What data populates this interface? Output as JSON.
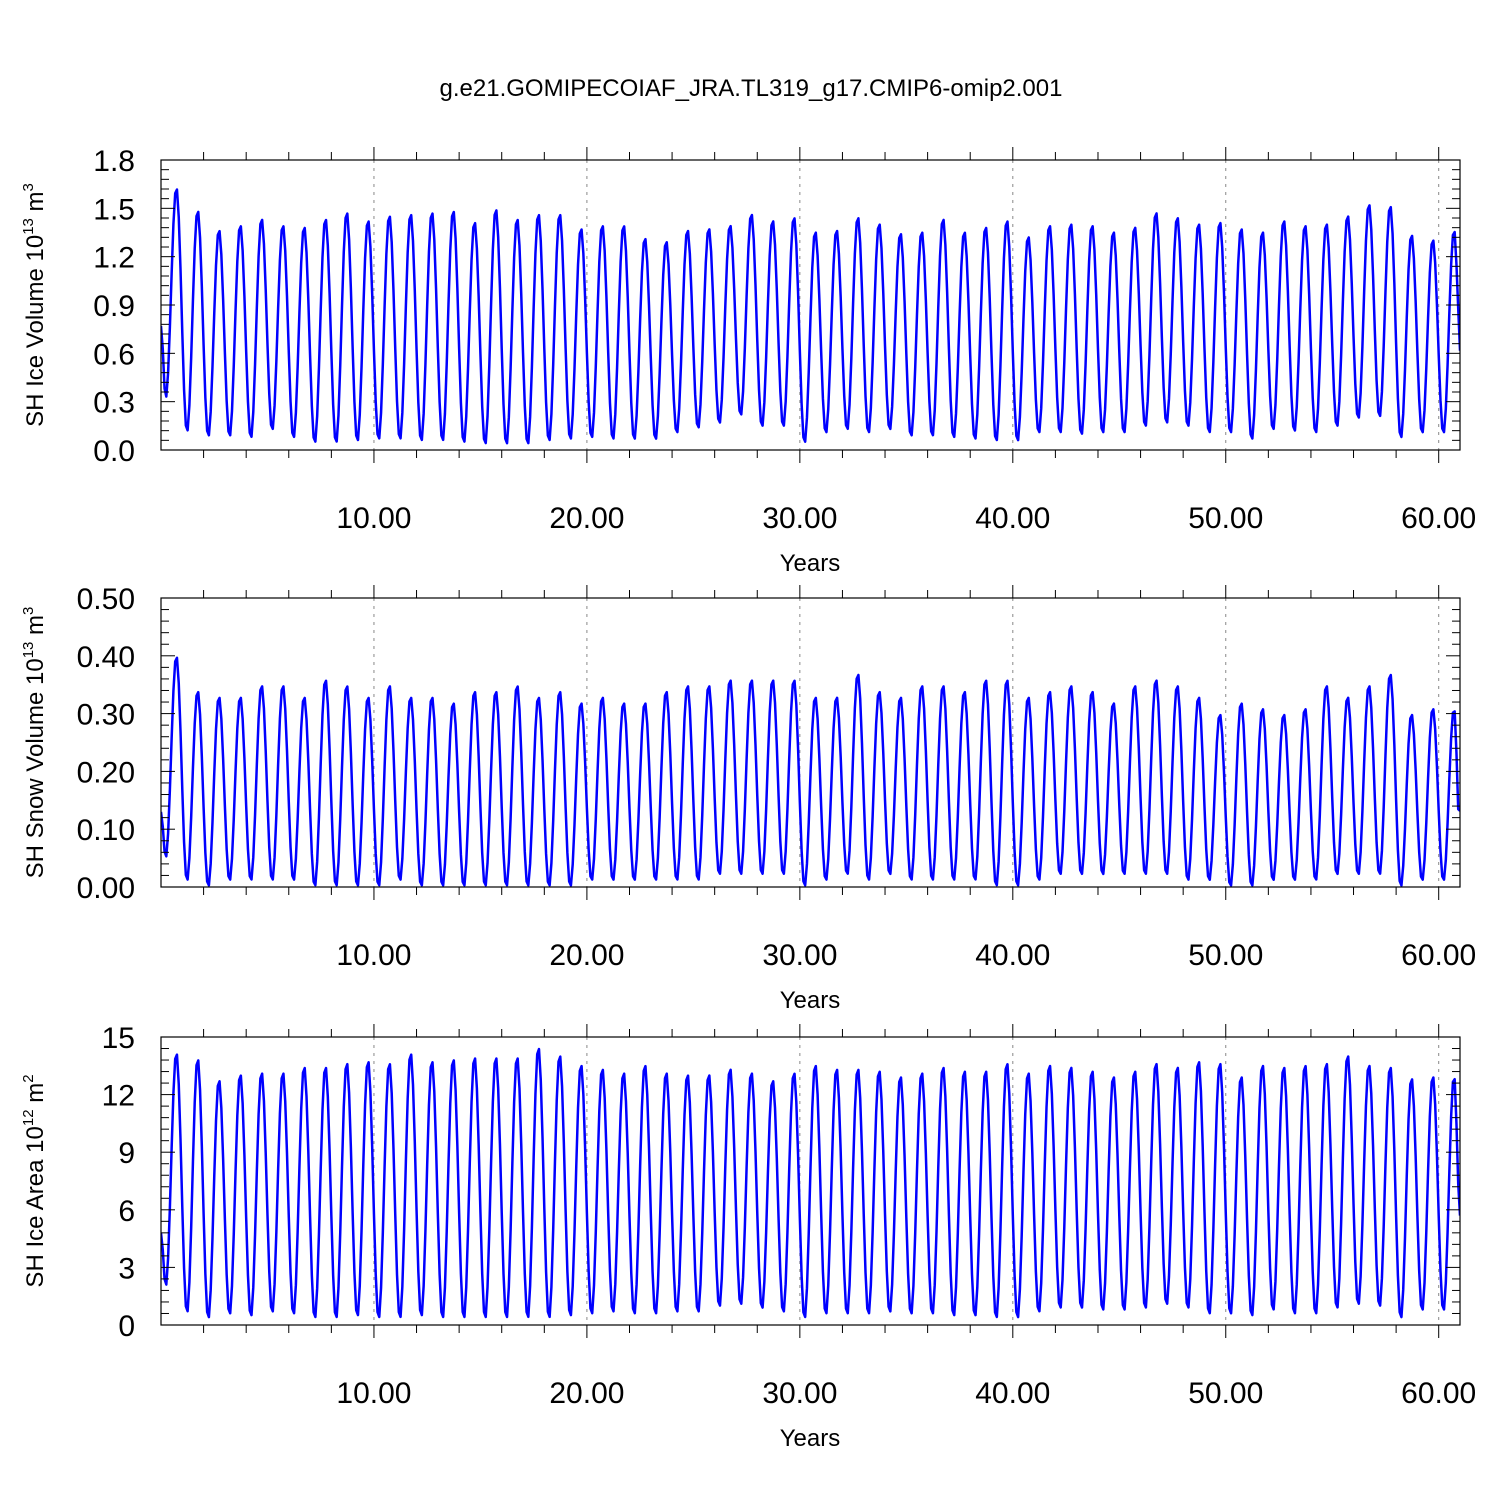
{
  "figure_title": "g.e21.GOMIPECOIAF_JRA.TL319_g17.CMIP6-omip2.001",
  "chart_data": [
    {
      "type": "line",
      "id": "ice-volume",
      "ylabel_main": "SH Ice Volume 10",
      "ylabel_exp": "13",
      "ylabel_unit": " m",
      "ylabel_unit_exp": "3",
      "xlabel": "Years",
      "xlim": [
        0.0,
        61.0
      ],
      "ylim": [
        0.0,
        1.8
      ],
      "y_ticks": [
        0.0,
        0.3,
        0.6,
        0.9,
        1.2,
        1.5,
        1.8
      ],
      "y_tick_labels": [
        "0.0",
        "0.3",
        "0.6",
        "0.9",
        "1.2",
        "1.5",
        "1.8"
      ],
      "x_ticks": [
        10,
        20,
        30,
        40,
        50,
        60
      ],
      "x_tick_labels": [
        "10.00",
        "20.00",
        "30.00",
        "40.00",
        "50.00",
        "60.00"
      ],
      "series": [
        {
          "name": "SH Ice Volume",
          "color": "#0000ff",
          "start_value": 0.77,
          "end_value": 0.75,
          "annual_max": [
            1.63,
            1.49,
            1.37,
            1.4,
            1.44,
            1.4,
            1.39,
            1.44,
            1.48,
            1.43,
            1.46,
            1.47,
            1.48,
            1.49,
            1.42,
            1.5,
            1.44,
            1.47,
            1.47,
            1.38,
            1.4,
            1.4,
            1.32,
            1.3,
            1.37,
            1.38,
            1.4,
            1.47,
            1.43,
            1.45,
            1.36,
            1.37,
            1.45,
            1.41,
            1.35,
            1.36,
            1.44,
            1.36,
            1.39,
            1.43,
            1.33,
            1.4,
            1.41,
            1.4,
            1.36,
            1.39,
            1.48,
            1.45,
            1.41,
            1.42,
            1.38,
            1.36,
            1.43,
            1.4,
            1.41,
            1.46,
            1.53,
            1.52,
            1.34,
            1.31,
            1.37
          ],
          "annual_min": [
            0.32,
            0.11,
            0.08,
            0.08,
            0.07,
            0.12,
            0.07,
            0.04,
            0.04,
            0.05,
            0.06,
            0.06,
            0.05,
            0.05,
            0.04,
            0.03,
            0.03,
            0.03,
            0.05,
            0.06,
            0.07,
            0.06,
            0.06,
            0.06,
            0.1,
            0.13,
            0.16,
            0.21,
            0.14,
            0.14,
            0.04,
            0.1,
            0.12,
            0.1,
            0.12,
            0.08,
            0.08,
            0.07,
            0.06,
            0.05,
            0.05,
            0.1,
            0.1,
            0.09,
            0.1,
            0.1,
            0.14,
            0.16,
            0.14,
            0.1,
            0.1,
            0.06,
            0.12,
            0.11,
            0.1,
            0.14,
            0.19,
            0.2,
            0.07,
            0.1
          ]
        }
      ]
    },
    {
      "type": "line",
      "id": "snow-volume",
      "ylabel_main": "SH Snow Volume 10",
      "ylabel_exp": "13",
      "ylabel_unit": " m",
      "ylabel_unit_exp": "3",
      "xlabel": "Years",
      "xlim": [
        0.0,
        61.0
      ],
      "ylim": [
        0.0,
        0.5
      ],
      "y_ticks": [
        0.0,
        0.1,
        0.2,
        0.3,
        0.4,
        0.5
      ],
      "y_tick_labels": [
        "0.00",
        "0.10",
        "0.20",
        "0.30",
        "0.40",
        "0.50"
      ],
      "x_ticks": [
        10,
        20,
        30,
        40,
        50,
        60
      ],
      "x_tick_labels": [
        "10.00",
        "20.00",
        "30.00",
        "40.00",
        "50.00",
        "60.00"
      ],
      "series": [
        {
          "name": "SH Snow Volume",
          "color": "#0000ff",
          "start_value": 0.13,
          "end_value": 0.09,
          "annual_max": [
            0.4,
            0.34,
            0.33,
            0.33,
            0.35,
            0.35,
            0.33,
            0.36,
            0.35,
            0.33,
            0.35,
            0.33,
            0.33,
            0.32,
            0.34,
            0.34,
            0.35,
            0.33,
            0.34,
            0.32,
            0.33,
            0.32,
            0.32,
            0.34,
            0.35,
            0.35,
            0.36,
            0.36,
            0.36,
            0.36,
            0.33,
            0.33,
            0.37,
            0.34,
            0.33,
            0.35,
            0.35,
            0.34,
            0.36,
            0.36,
            0.33,
            0.34,
            0.35,
            0.34,
            0.32,
            0.35,
            0.36,
            0.35,
            0.33,
            0.3,
            0.32,
            0.31,
            0.3,
            0.31,
            0.35,
            0.33,
            0.35,
            0.37,
            0.3,
            0.31,
            0.31
          ],
          "annual_min": [
            0.05,
            0.01,
            0.0,
            0.01,
            0.01,
            0.01,
            0.01,
            0.0,
            0.0,
            0.0,
            0.0,
            0.01,
            0.0,
            0.0,
            0.0,
            0.0,
            0.0,
            0.0,
            0.0,
            0.0,
            0.01,
            0.01,
            0.01,
            0.01,
            0.01,
            0.01,
            0.02,
            0.02,
            0.02,
            0.02,
            0.0,
            0.01,
            0.02,
            0.01,
            0.02,
            0.01,
            0.01,
            0.01,
            0.01,
            0.0,
            0.0,
            0.01,
            0.02,
            0.02,
            0.02,
            0.02,
            0.02,
            0.02,
            0.01,
            0.01,
            0.0,
            0.0,
            0.01,
            0.01,
            0.01,
            0.02,
            0.02,
            0.02,
            0.0,
            0.01
          ]
        }
      ]
    },
    {
      "type": "line",
      "id": "ice-area",
      "ylabel_main": "SH Ice Area 10",
      "ylabel_exp": "12",
      "ylabel_unit": " m",
      "ylabel_unit_exp": "2",
      "xlabel": "Years",
      "xlim": [
        0.0,
        61.0
      ],
      "ylim": [
        0.0,
        15.0
      ],
      "y_ticks": [
        0,
        3,
        6,
        9,
        12,
        15
      ],
      "y_tick_labels": [
        "0",
        "3",
        "6",
        "9",
        "12",
        "15"
      ],
      "x_ticks": [
        10,
        20,
        30,
        40,
        50,
        60
      ],
      "x_tick_labels": [
        "10.00",
        "20.00",
        "30.00",
        "40.00",
        "50.00",
        "60.00"
      ],
      "series": [
        {
          "name": "SH Ice Area",
          "color": "#0000ff",
          "start_value": 4.8,
          "end_value": 5.9,
          "annual_max": [
            14.2,
            13.9,
            12.8,
            13.1,
            13.2,
            13.2,
            13.5,
            13.5,
            13.7,
            13.8,
            13.7,
            14.2,
            13.8,
            13.9,
            14.0,
            14.0,
            14.0,
            14.5,
            14.1,
            13.6,
            13.4,
            13.2,
            13.6,
            13.2,
            13.1,
            13.1,
            13.4,
            13.2,
            12.8,
            13.2,
            13.6,
            13.4,
            13.4,
            13.3,
            13.0,
            13.2,
            13.5,
            13.3,
            13.3,
            13.7,
            13.2,
            13.6,
            13.5,
            13.3,
            13.0,
            13.3,
            13.7,
            13.5,
            13.8,
            13.7,
            13.0,
            13.6,
            13.5,
            13.6,
            13.7,
            14.1,
            13.6,
            13.5,
            12.9,
            13.0,
            13.0
          ],
          "annual_min": [
            2.0,
            0.6,
            0.3,
            0.5,
            0.4,
            0.6,
            0.5,
            0.3,
            0.3,
            0.4,
            0.3,
            0.3,
            0.4,
            0.3,
            0.3,
            0.3,
            0.3,
            0.3,
            0.3,
            0.4,
            0.5,
            0.6,
            0.5,
            0.5,
            0.6,
            0.6,
            0.9,
            1.0,
            0.8,
            0.6,
            0.3,
            0.5,
            0.5,
            0.5,
            0.6,
            0.5,
            0.5,
            0.4,
            0.4,
            0.3,
            0.3,
            0.6,
            0.8,
            0.8,
            0.7,
            0.7,
            0.8,
            1.0,
            0.8,
            0.5,
            0.5,
            0.4,
            0.7,
            0.5,
            0.5,
            0.8,
            1.0,
            0.9,
            0.3,
            0.7
          ]
        }
      ]
    }
  ]
}
